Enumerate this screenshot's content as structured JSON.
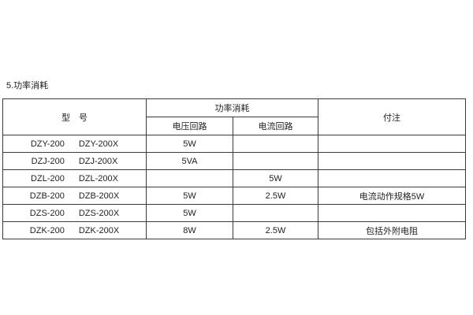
{
  "page": {
    "title": "5.功率消耗"
  },
  "table": {
    "header": {
      "model": "型　号",
      "power_group": "功率消耗",
      "voltage_circuit": "电压回路",
      "current_circuit": "电流回路",
      "note": "付注"
    },
    "rows": [
      {
        "model1": "DZY-200",
        "model2": "DZY-200X",
        "voltage": "5W",
        "current": "",
        "note": ""
      },
      {
        "model1": "DZJ-200",
        "model2": "DZJ-200X",
        "voltage": "5VA",
        "current": "",
        "note": ""
      },
      {
        "model1": "DZL-200",
        "model2": "DZL-200X",
        "voltage": "",
        "current": "5W",
        "note": ""
      },
      {
        "model1": "DZB-200",
        "model2": "DZB-200X",
        "voltage": "5W",
        "current": "2.5W",
        "note": "电流动作规格5W"
      },
      {
        "model1": "DZS-200",
        "model2": "DZS-200X",
        "voltage": "5W",
        "current": "",
        "note": ""
      },
      {
        "model1": "DZK-200",
        "model2": "DZK-200X",
        "voltage": "8W",
        "current": "2.5W",
        "note": "包括外附电阻"
      }
    ]
  }
}
